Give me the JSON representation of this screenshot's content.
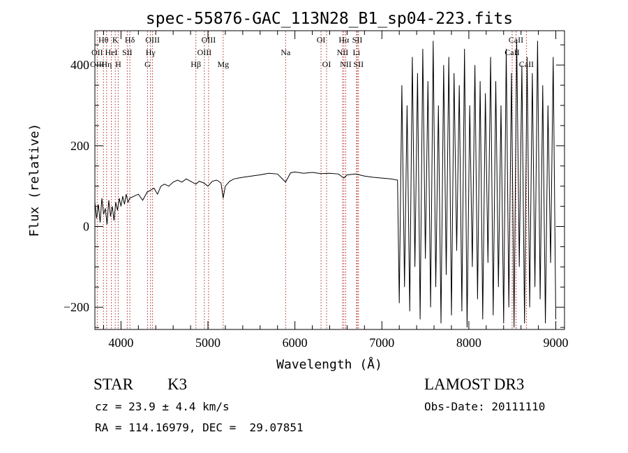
{
  "chart_data": {
    "type": "line",
    "title": "spec-55876-GAC_113N28_B1_sp04-223.fits",
    "xlabel": "Wavelength (Å)",
    "ylabel": "Flux (relative)",
    "xlim": [
      3700,
      9100
    ],
    "ylim": [
      -255,
      485
    ],
    "x_ticks": [
      4000,
      5000,
      6000,
      7000,
      8000,
      9000
    ],
    "y_ticks": [
      -200,
      0,
      200,
      400
    ],
    "x_tick_labels": [
      "4000",
      "5000",
      "6000",
      "7000",
      "8000",
      "9000"
    ],
    "y_tick_labels": [
      "−200",
      "0",
      "200",
      "400"
    ],
    "spectrum": {
      "name": "flux",
      "x": [
        3700,
        3720,
        3740,
        3760,
        3780,
        3800,
        3820,
        3840,
        3860,
        3880,
        3900,
        3920,
        3940,
        3960,
        3980,
        4000,
        4020,
        4040,
        4060,
        4080,
        4100,
        4150,
        4200,
        4250,
        4300,
        4340,
        4380,
        4420,
        4460,
        4500,
        4550,
        4600,
        4650,
        4700,
        4750,
        4800,
        4861,
        4900,
        4950,
        5000,
        5050,
        5100,
        5150,
        5175,
        5200,
        5250,
        5300,
        5350,
        5400,
        5500,
        5600,
        5700,
        5800,
        5893,
        5950,
        6000,
        6100,
        6200,
        6300,
        6400,
        6500,
        6563,
        6600,
        6700,
        6800,
        6900,
        7000,
        7100,
        7180,
        7200,
        7230,
        7260,
        7290,
        7320,
        7350,
        7380,
        7410,
        7440,
        7470,
        7500,
        7530,
        7560,
        7590,
        7620,
        7650,
        7680,
        7710,
        7740,
        7770,
        7800,
        7830,
        7860,
        7890,
        7920,
        7950,
        7980,
        8010,
        8040,
        8070,
        8100,
        8130,
        8160,
        8190,
        8220,
        8250,
        8280,
        8310,
        8340,
        8370,
        8400,
        8430,
        8460,
        8490,
        8520,
        8550,
        8580,
        8610,
        8640,
        8670,
        8700,
        8730,
        8760,
        8790,
        8820,
        8850,
        8880,
        8910,
        8940,
        8970,
        9000
      ],
      "y": [
        60,
        20,
        55,
        10,
        70,
        30,
        45,
        5,
        65,
        25,
        50,
        15,
        60,
        40,
        70,
        50,
        75,
        55,
        80,
        60,
        70,
        75,
        80,
        65,
        85,
        90,
        95,
        80,
        100,
        105,
        100,
        110,
        115,
        110,
        118,
        112,
        105,
        112,
        108,
        100,
        112,
        115,
        108,
        70,
        100,
        112,
        118,
        120,
        122,
        125,
        128,
        132,
        130,
        110,
        133,
        135,
        132,
        134,
        131,
        132,
        130,
        120,
        128,
        130,
        125,
        122,
        120,
        118,
        115,
        -190,
        350,
        -150,
        300,
        -210,
        420,
        -100,
        380,
        -230,
        440,
        -80,
        360,
        -200,
        460,
        -150,
        300,
        -240,
        400,
        -120,
        420,
        -220,
        380,
        -60,
        350,
        -210,
        440,
        -250,
        300,
        -100,
        400,
        -180,
        360,
        -230,
        330,
        -90,
        420,
        -220,
        360,
        -150,
        300,
        -240,
        440,
        -200,
        380,
        -250,
        460,
        -100,
        400,
        -240,
        420,
        -200,
        380,
        -150,
        460,
        -180,
        350,
        -240,
        300,
        -90,
        420,
        -230
      ]
    },
    "line_markers": [
      {
        "label": "Hθ",
        "x": 3798,
        "row": 1
      },
      {
        "label": "K",
        "x": 3934,
        "row": 1
      },
      {
        "label": "Hδ",
        "x": 4102,
        "row": 1
      },
      {
        "label": "OIII",
        "x": 4363,
        "row": 1
      },
      {
        "label": "OIII",
        "x": 5007,
        "row": 1
      },
      {
        "label": "OI",
        "x": 6300,
        "row": 1
      },
      {
        "label": "Hα",
        "x": 6563,
        "row": 1
      },
      {
        "label": "SII",
        "x": 6717,
        "row": 1
      },
      {
        "label": "CaII",
        "x": 8542,
        "row": 1
      },
      {
        "label": "OII",
        "x": 3727,
        "row": 2
      },
      {
        "label": "HeI",
        "x": 3889,
        "row": 2
      },
      {
        "label": "SII",
        "x": 4072,
        "row": 2
      },
      {
        "label": "Hγ",
        "x": 4340,
        "row": 2
      },
      {
        "label": "OIII",
        "x": 4959,
        "row": 2
      },
      {
        "label": "Na",
        "x": 5893,
        "row": 2
      },
      {
        "label": "NII",
        "x": 6548,
        "row": 2
      },
      {
        "label": "Li",
        "x": 6708,
        "row": 2
      },
      {
        "label": "CaII",
        "x": 8498,
        "row": 2
      },
      {
        "label": "OIII",
        "x": 3727,
        "row": 3
      },
      {
        "label": "Hη",
        "x": 3835,
        "row": 3
      },
      {
        "label": "H",
        "x": 3968,
        "row": 3
      },
      {
        "label": "G",
        "x": 4305,
        "row": 3
      },
      {
        "label": "Hβ",
        "x": 4861,
        "row": 3
      },
      {
        "label": "Mg",
        "x": 5175,
        "row": 3
      },
      {
        "label": "OI",
        "x": 6364,
        "row": 3
      },
      {
        "label": "NII",
        "x": 6584,
        "row": 3
      },
      {
        "label": "SII",
        "x": 6731,
        "row": 3
      },
      {
        "label": "CaII",
        "x": 8662,
        "row": 3
      }
    ]
  },
  "info": {
    "class_label": "STAR",
    "subclass": "K3",
    "survey": "LAMOST DR3",
    "cz": "cz = 23.9 ± 4.4 km/s",
    "obs_date": "Obs-Date: 20111110",
    "coords": "RA = 114.16979, DEC =  29.07851"
  },
  "colors": {
    "marker_line": "#b22222",
    "axis": "#000000",
    "background": "#ffffff"
  }
}
